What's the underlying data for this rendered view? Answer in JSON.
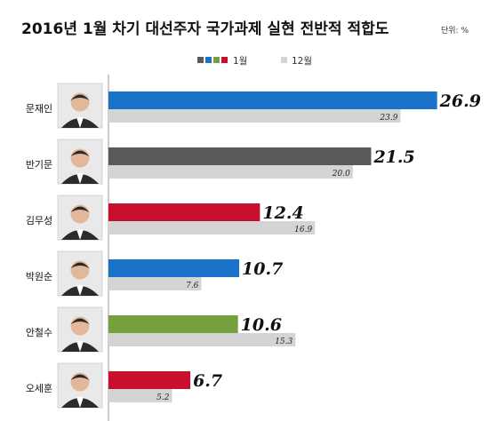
{
  "chart_data": {
    "type": "bar",
    "title": "2016년 1월 차기 대선주자 국가과제 실현 전반적 적합도",
    "unit_label": "단위: %",
    "legend": {
      "current_label": "1월",
      "previous_label": "12월"
    },
    "categories": [
      "문재인",
      "반기문",
      "김무성",
      "박원순",
      "안철수",
      "오세훈"
    ],
    "series": [
      {
        "name": "1월",
        "values": [
          26.9,
          21.5,
          12.4,
          10.7,
          10.6,
          6.7
        ],
        "colors": [
          "#1a73c8",
          "#5a5a5a",
          "#c8102e",
          "#1a73c8",
          "#76a03c",
          "#c8102e"
        ],
        "labels": [
          "26.9",
          "21.5",
          "12.4",
          "10.7",
          "10.6",
          "6.7"
        ]
      },
      {
        "name": "12월",
        "values": [
          23.9,
          20.0,
          16.9,
          7.6,
          15.3,
          5.2
        ],
        "color": "#d4d4d4",
        "labels": [
          "23.9",
          "20.0",
          "16.9",
          "7.6",
          "15.3",
          "5.2"
        ]
      }
    ],
    "legend_swatch_colors": [
      "#5a5a5a",
      "#1a73c8",
      "#76a03c",
      "#c8102e"
    ],
    "grid": false,
    "xlim": [
      0,
      30
    ]
  }
}
